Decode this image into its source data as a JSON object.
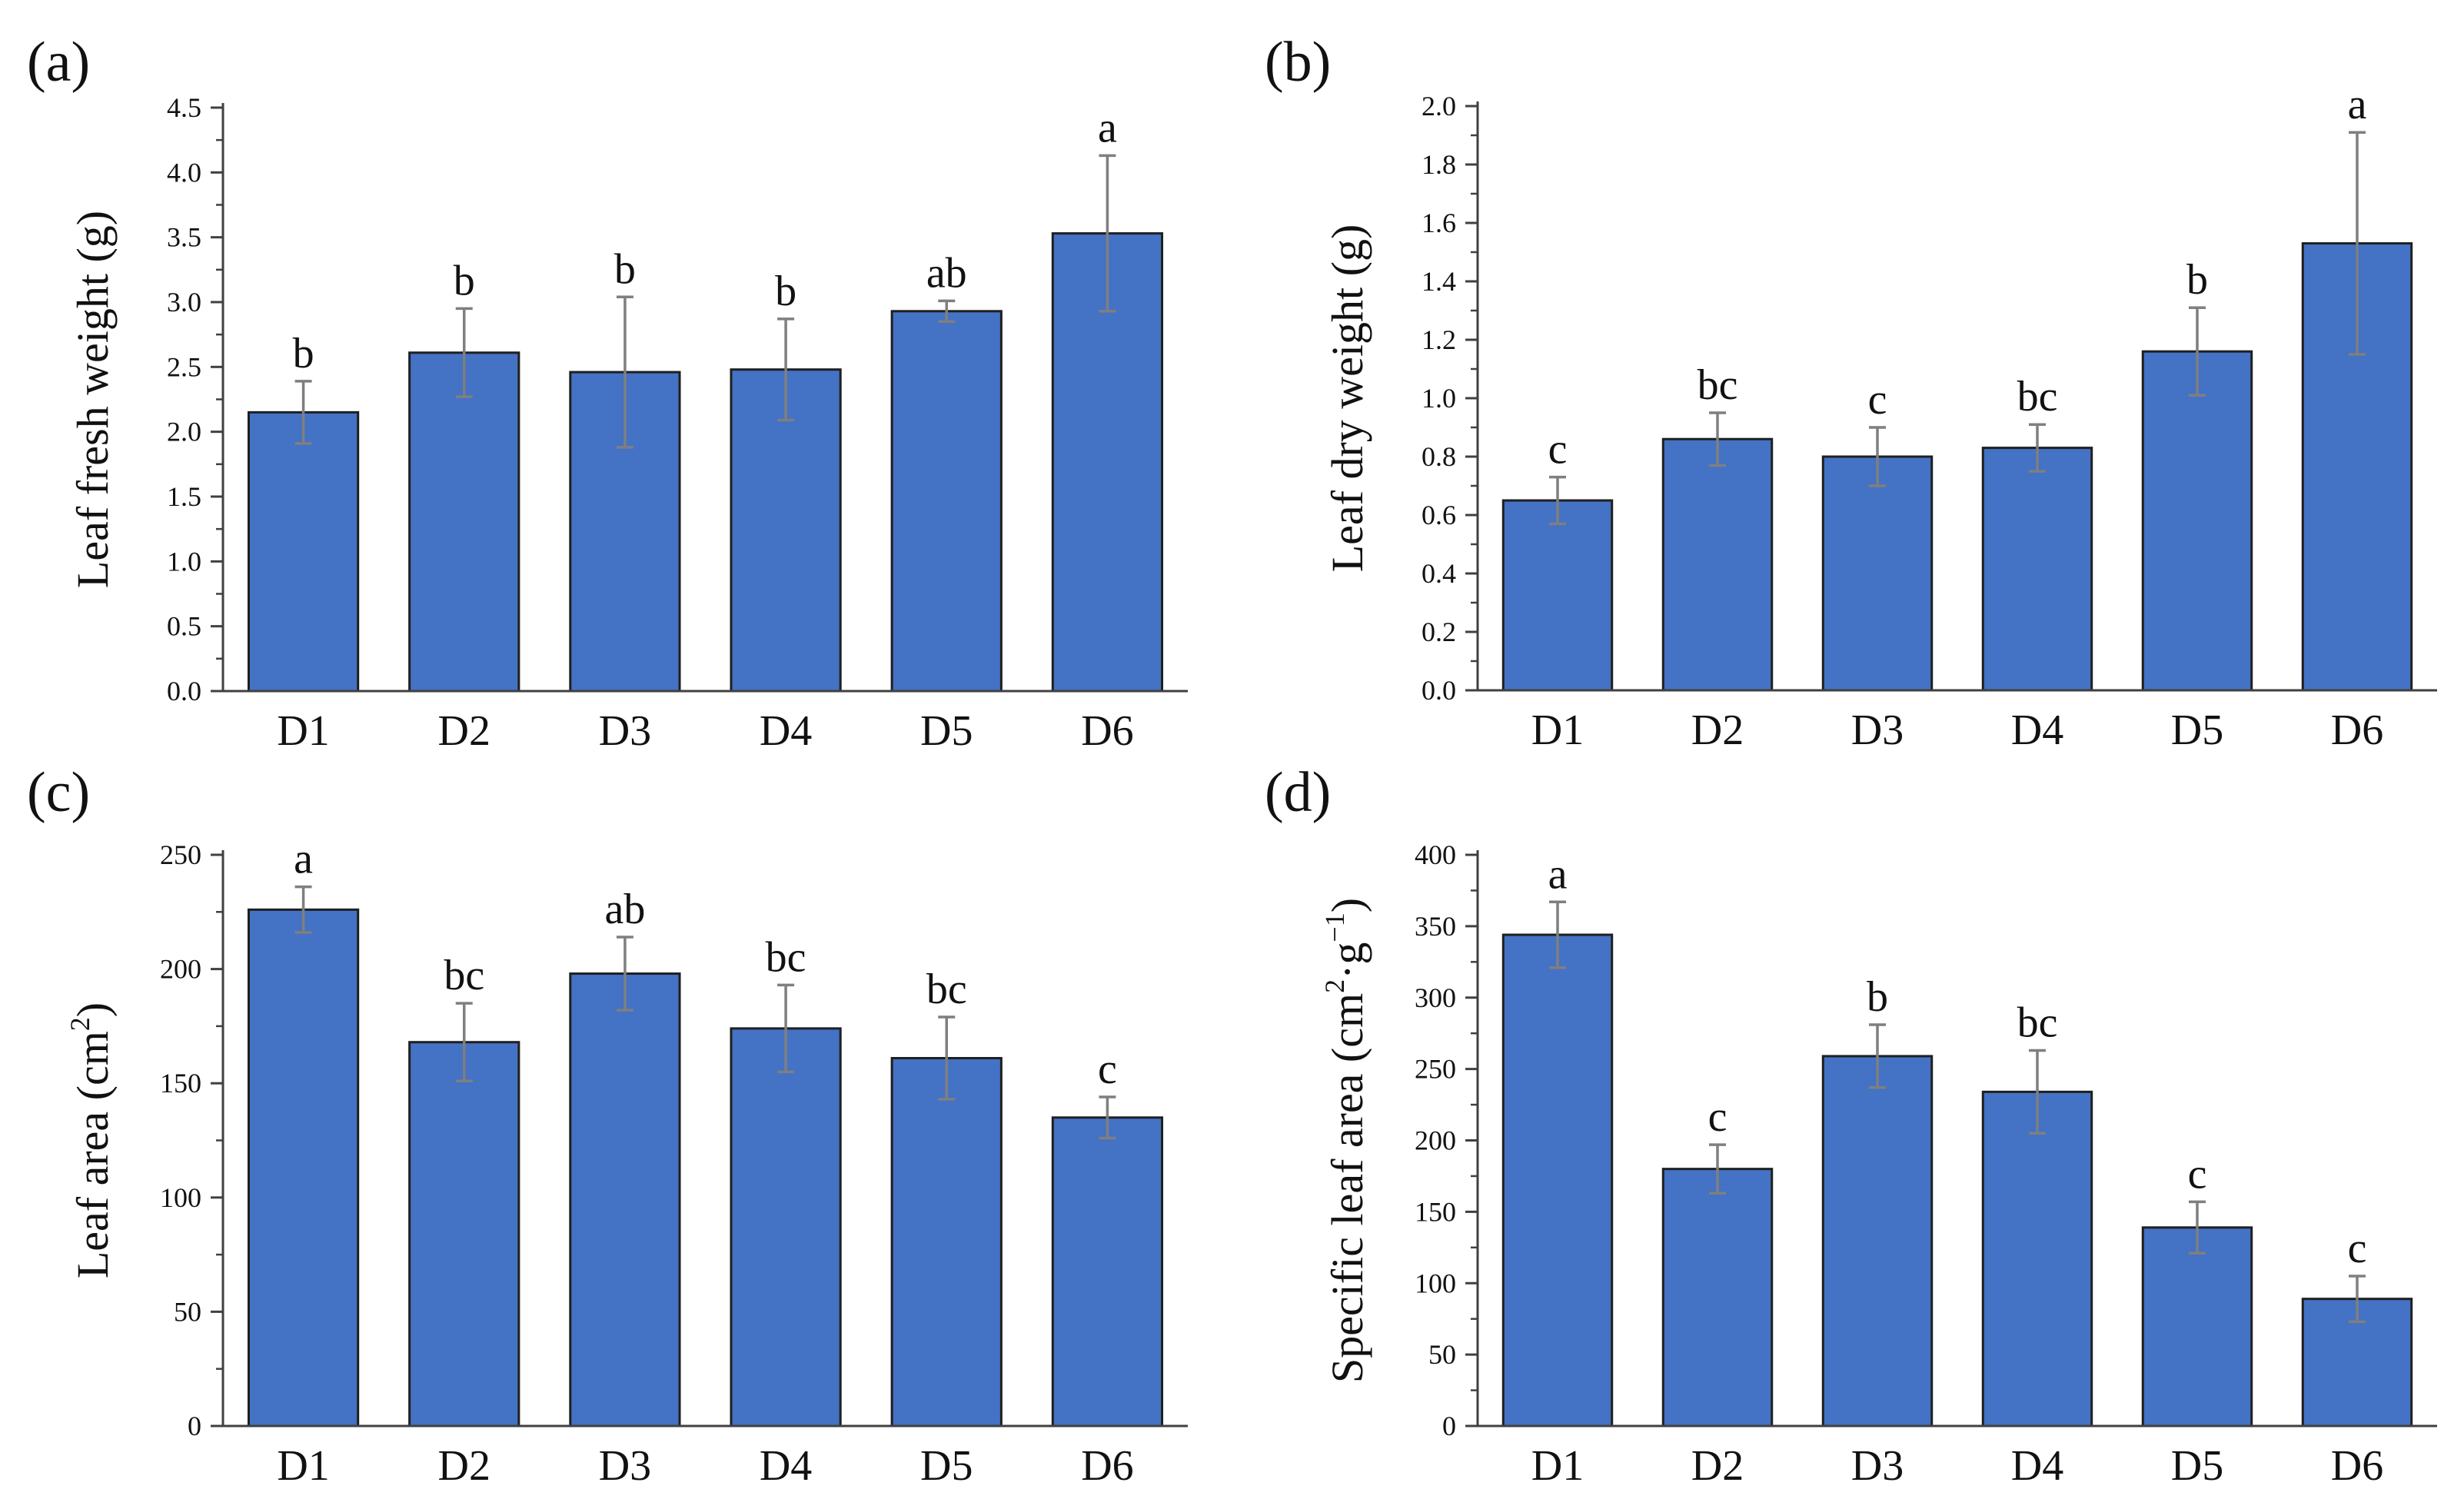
{
  "figure": {
    "panel_labels": [
      "(a)",
      "(b)",
      "(c)",
      "(d)"
    ]
  },
  "style": {
    "bar_color": "#4472c4",
    "bar_edge": "#1f1f1f",
    "error_bar_color": "#7f7f7f",
    "axis_color": "#404040",
    "text_color": "#111111"
  },
  "chart_data": [
    {
      "type": "bar",
      "panel": "(a)",
      "categories": [
        "D1",
        "D2",
        "D3",
        "D4",
        "D5",
        "D6"
      ],
      "values": [
        2.15,
        2.61,
        2.46,
        2.48,
        2.93,
        3.53
      ],
      "errors": [
        0.24,
        0.34,
        0.58,
        0.39,
        0.08,
        0.6
      ],
      "significance": [
        "b",
        "b",
        "b",
        "b",
        "ab",
        "a"
      ],
      "ylabel": "Leaf fresh weight (g)",
      "ylim": [
        0,
        4.5
      ],
      "yticks": [
        0,
        0.5,
        1,
        1.5,
        2,
        2.5,
        3,
        3.5,
        4,
        4.5
      ],
      "ytick_labels": [
        "0.0",
        "0.5",
        "1.0",
        "1.5",
        "2.0",
        "2.5",
        "3.0",
        "3.5",
        "4.0",
        "4.5"
      ]
    },
    {
      "type": "bar",
      "panel": "(b)",
      "categories": [
        "D1",
        "D2",
        "D3",
        "D4",
        "D5",
        "D6"
      ],
      "values": [
        0.65,
        0.86,
        0.8,
        0.83,
        1.16,
        1.53
      ],
      "errors": [
        0.08,
        0.09,
        0.1,
        0.08,
        0.15,
        0.38
      ],
      "significance": [
        "c",
        "bc",
        "c",
        "bc",
        "b",
        "a"
      ],
      "ylabel": "Leaf dry weight (g)",
      "ylim": [
        0,
        2.0
      ],
      "yticks": [
        0,
        0.2,
        0.4,
        0.6,
        0.8,
        1.0,
        1.2,
        1.4,
        1.6,
        1.8,
        2.0
      ],
      "ytick_labels": [
        "0.0",
        "0.2",
        "0.4",
        "0.6",
        "0.8",
        "1.0",
        "1.2",
        "1.4",
        "1.6",
        "1.8",
        "2.0"
      ]
    },
    {
      "type": "bar",
      "panel": "(c)",
      "categories": [
        "D1",
        "D2",
        "D3",
        "D4",
        "D5",
        "D6"
      ],
      "values": [
        226,
        168,
        198,
        174,
        161,
        135
      ],
      "errors": [
        10,
        17,
        16,
        19,
        18,
        9
      ],
      "significance": [
        "a",
        "bc",
        "ab",
        "bc",
        "bc",
        "c"
      ],
      "ylabel": "Leaf area (cm",
      "ylabel_sup": "2",
      "ylabel_tail": ")",
      "ylim": [
        0,
        250
      ],
      "yticks": [
        0,
        50,
        100,
        150,
        200,
        250
      ],
      "ytick_labels": [
        "0",
        "50",
        "100",
        "150",
        "200",
        "250"
      ]
    },
    {
      "type": "bar",
      "panel": "(d)",
      "categories": [
        "D1",
        "D2",
        "D3",
        "D4",
        "D5",
        "D6"
      ],
      "values": [
        344,
        180,
        259,
        234,
        139,
        89
      ],
      "errors": [
        23,
        17,
        22,
        29,
        18,
        16
      ],
      "significance": [
        "a",
        "c",
        "b",
        "bc",
        "c",
        "c"
      ],
      "ylabel": "Specific leaf area (cm",
      "ylabel_sup": "2",
      "ylabel_mid": "·g",
      "ylabel_sup2": "−1",
      "ylabel_tail": ")",
      "ylim": [
        0,
        400
      ],
      "yticks": [
        0,
        50,
        100,
        150,
        200,
        250,
        300,
        350,
        400
      ],
      "ytick_labels": [
        "0",
        "50",
        "100",
        "150",
        "200",
        "250",
        "300",
        "350",
        "400"
      ]
    }
  ]
}
